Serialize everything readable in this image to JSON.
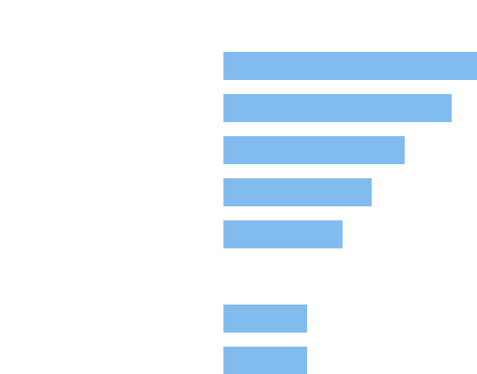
{
  "chart_data": {
    "type": "bar",
    "orientation": "horizontal",
    "color": "#82bbee",
    "values": [
      100,
      90,
      71.5,
      58.5,
      47,
      null,
      33,
      33
    ],
    "grid": false,
    "legend": "none"
  }
}
